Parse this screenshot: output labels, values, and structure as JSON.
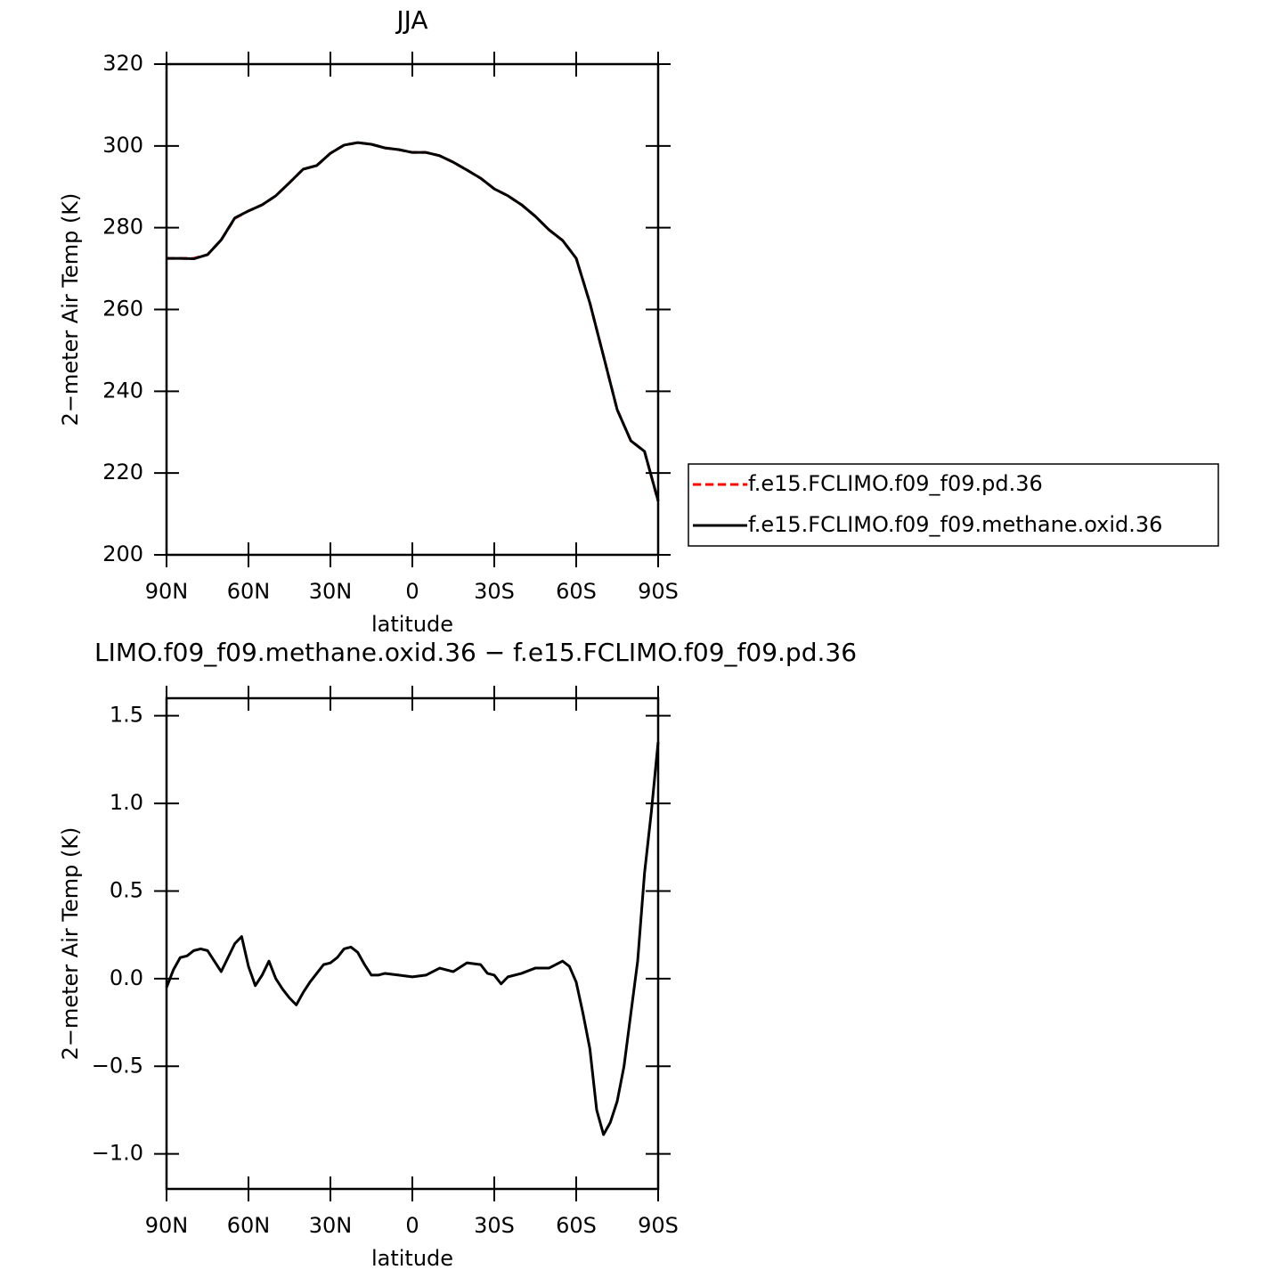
{
  "chart_data": [
    {
      "type": "line",
      "title": "JJA",
      "ylabel": "2−meter Air Temp (K)",
      "xlabel": "latitude",
      "x": [
        90,
        85,
        80,
        75,
        70,
        65,
        60,
        55,
        50,
        45,
        40,
        35,
        30,
        25,
        20,
        15,
        10,
        5,
        0,
        -5,
        -10,
        -15,
        -20,
        -25,
        -30,
        -35,
        -40,
        -45,
        -50,
        -55,
        -60,
        -65,
        -70,
        -75,
        -80,
        -85,
        -90
      ],
      "series": [
        {
          "name": "f.e15.FCLIMO.f09_f09.pd.36",
          "color": "#ff0000",
          "dash": true,
          "values": [
            272.5,
            272.5,
            272.5,
            273.4,
            277,
            282.3,
            284.1,
            285.6,
            287.8,
            291,
            294.3,
            295.2,
            298.2,
            300.2,
            300.8,
            300.4,
            299.5,
            299.1,
            298.4,
            298.4,
            297.6,
            296,
            294.1,
            292.1,
            289.5,
            287.8,
            285.6,
            282.8,
            279.5,
            276.9,
            272.5,
            261.6,
            248.6,
            235.5,
            227.9,
            225.3,
            213.1
          ]
        },
        {
          "name": "f.e15.FCLIMO.f09_f09.methane.oxid.36",
          "color": "#000000",
          "dash": false,
          "values": [
            272.5,
            272.5,
            272.4,
            273.4,
            277,
            282.4,
            284.1,
            285.6,
            287.8,
            291,
            294.3,
            295.2,
            298.2,
            300.2,
            300.8,
            300.4,
            299.5,
            299.1,
            298.4,
            298.4,
            297.6,
            296,
            294.1,
            292.1,
            289.5,
            287.8,
            285.6,
            282.8,
            279.5,
            276.9,
            272.5,
            261.6,
            248.6,
            235.5,
            227.9,
            225.3,
            213.2
          ]
        }
      ],
      "xlim": [
        90,
        -90
      ],
      "xticks": [
        {
          "value": 90,
          "label": "90N"
        },
        {
          "value": 60,
          "label": "60N"
        },
        {
          "value": 30,
          "label": "30N"
        },
        0,
        {
          "value": -30,
          "label": "30S"
        },
        {
          "value": -60,
          "label": "60S"
        },
        {
          "value": -90,
          "label": "90S"
        }
      ],
      "ylim": [
        200,
        320
      ],
      "yticks": [
        200,
        220,
        240,
        260,
        280,
        300,
        320
      ]
    },
    {
      "type": "line",
      "title": "LIMO.f09_f09.methane.oxid.36 − f.e15.FCLIMO.f09_f09.pd.36",
      "ylabel": "2−meter Air Temp (K)",
      "xlabel": "latitude",
      "x": [
        90,
        87.5,
        85,
        82.5,
        80,
        77.5,
        75,
        72.5,
        70,
        67.5,
        65,
        62.5,
        60,
        57.5,
        55,
        52.5,
        50,
        47.5,
        45,
        42.5,
        40,
        37.5,
        35,
        32.5,
        30,
        27.5,
        25,
        22.5,
        20,
        17.5,
        15,
        12.5,
        10,
        5,
        0,
        -5,
        -10,
        -15,
        -20,
        -25,
        -27.5,
        -30,
        -32.5,
        -35,
        -40,
        -45,
        -50,
        -55,
        -57.5,
        -60,
        -62.5,
        -65,
        -67.5,
        -70,
        -72.5,
        -75,
        -77.5,
        -80,
        -82.5,
        -85,
        -87.5,
        -90
      ],
      "values": [
        -0.05,
        0.05,
        0.12,
        0.13,
        0.16,
        0.17,
        0.16,
        0.1,
        0.04,
        0.12,
        0.2,
        0.24,
        0.07,
        -0.04,
        0.02,
        0.1,
        0.0,
        -0.06,
        -0.11,
        -0.15,
        -0.08,
        -0.02,
        0.03,
        0.08,
        0.09,
        0.12,
        0.17,
        0.18,
        0.15,
        0.08,
        0.02,
        0.02,
        0.03,
        0.02,
        0.01,
        0.02,
        0.06,
        0.04,
        0.09,
        0.08,
        0.03,
        0.02,
        -0.03,
        0.01,
        0.03,
        0.06,
        0.06,
        0.1,
        0.07,
        -0.02,
        -0.2,
        -0.4,
        -0.75,
        -0.89,
        -0.82,
        -0.7,
        -0.5,
        -0.2,
        0.1,
        0.6,
        0.95,
        1.35
      ],
      "color": "#000000",
      "xlim": [
        90,
        -90
      ],
      "xticks": [
        {
          "value": 90,
          "label": "90N"
        },
        {
          "value": 60,
          "label": "60N"
        },
        {
          "value": 30,
          "label": "30N"
        },
        0,
        {
          "value": -30,
          "label": "30S"
        },
        {
          "value": -60,
          "label": "60S"
        },
        {
          "value": -90,
          "label": "90S"
        }
      ],
      "ylim": [
        -1.2,
        1.6
      ],
      "yticks": [
        {
          "value": -1.0,
          "label": "−1.0"
        },
        {
          "value": -0.5,
          "label": "−0.5"
        },
        {
          "value": 0.0,
          "label": "0.0"
        },
        0.5,
        {
          "value": 1.0,
          "label": "1.0"
        },
        1.5
      ]
    }
  ]
}
